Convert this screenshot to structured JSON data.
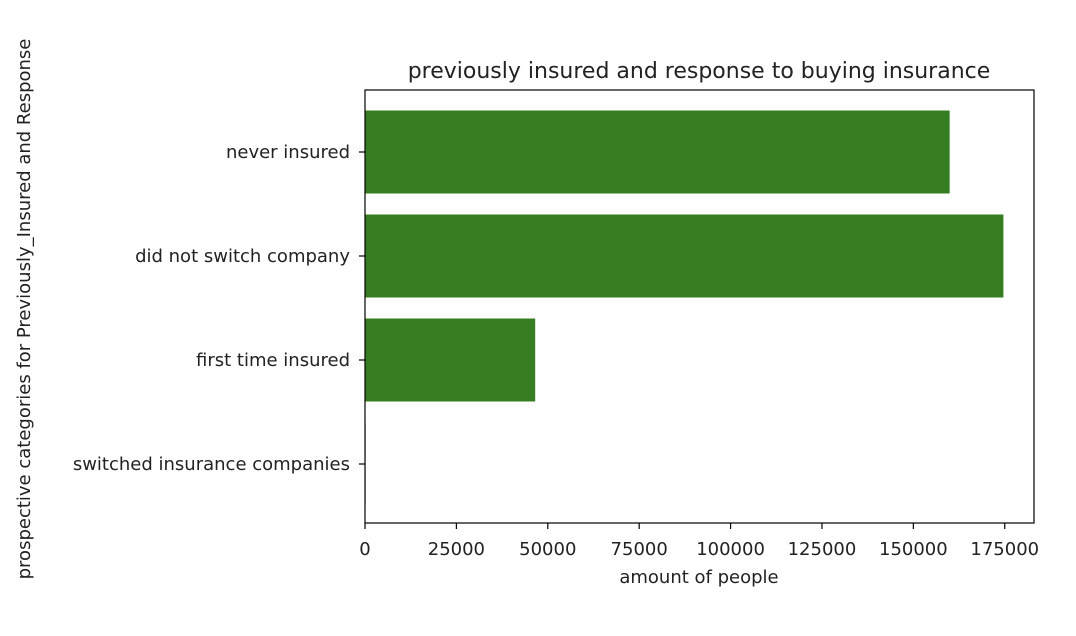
{
  "chart_data": {
    "type": "bar",
    "orientation": "horizontal",
    "title": "previously insured and response to buying insurance",
    "xlabel": "amount of people",
    "ylabel": "prospective categories for Previously_Insured and Response",
    "categories": [
      "never insured",
      "did not switch company",
      "first time insured",
      "switched insurance companies"
    ],
    "values": [
      159929,
      174628,
      46552,
      158
    ],
    "xlim": [
      0,
      183000
    ],
    "xticks": [
      0,
      25000,
      50000,
      75000,
      100000,
      125000,
      150000,
      175000
    ],
    "xtick_labels": [
      "0",
      "25000",
      "50000",
      "75000",
      "100000",
      "125000",
      "150000",
      "175000"
    ],
    "grid": false,
    "bar_color": "#367d22"
  }
}
